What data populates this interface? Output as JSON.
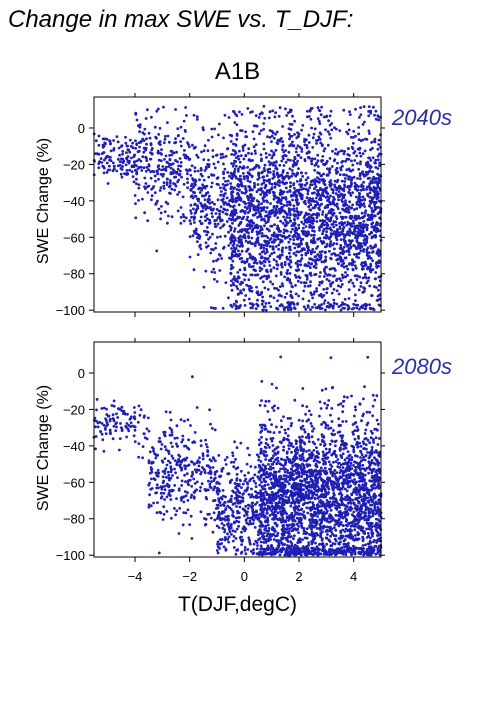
{
  "figure_title": "Change in max SWE vs. T_DJF:",
  "scenario_title": "A1B",
  "xlabel": "T(DJF,degC)",
  "point_color": "#1f1fb4",
  "label_color": "#2a2fa8",
  "chart_data": [
    {
      "type": "scatter",
      "panel_label": "2040s",
      "xlabel": "",
      "ylabel": "SWE Change (%)",
      "xlim": [
        -5.5,
        5.0
      ],
      "ylim": [
        -101,
        17
      ],
      "xticks": [
        -4,
        -2,
        0,
        2,
        4
      ],
      "yticks": [
        0,
        -20,
        -40,
        -60,
        -80,
        -100
      ],
      "grid": false,
      "clusters": [
        {
          "x_range": [
            -5.5,
            -4.0
          ],
          "y_mean": -16,
          "y_sd": 6,
          "n": 120
        },
        {
          "x_range": [
            -4.0,
            -2.0
          ],
          "y_mean": -20,
          "y_sd": 14,
          "n": 260
        },
        {
          "x_range": [
            -2.0,
            -0.5
          ],
          "y_mean": -42,
          "y_sd": 20,
          "n": 300
        },
        {
          "x_range": [
            -0.5,
            5.0
          ],
          "y_mean": -50,
          "y_sd": 28,
          "n": 2600
        }
      ]
    },
    {
      "type": "scatter",
      "panel_label": "2080s",
      "xlabel": "T(DJF,degC)",
      "ylabel": "SWE Change (%)",
      "xlim": [
        -5.5,
        5.0
      ],
      "ylim": [
        -101,
        17
      ],
      "xticks": [
        -4,
        -2,
        0,
        2,
        4
      ],
      "yticks": [
        0,
        -20,
        -40,
        -60,
        -80,
        -100
      ],
      "grid": false,
      "clusters": [
        {
          "x_range": [
            -5.5,
            -3.5
          ],
          "y_mean": -28,
          "y_sd": 6,
          "n": 110
        },
        {
          "x_range": [
            -3.5,
            -1.0
          ],
          "y_mean": -55,
          "y_sd": 14,
          "n": 320
        },
        {
          "x_range": [
            -1.0,
            0.5
          ],
          "y_mean": -75,
          "y_sd": 15,
          "n": 320
        },
        {
          "x_range": [
            0.5,
            5.0
          ],
          "y_mean": -70,
          "y_sd": 22,
          "n": 2600
        }
      ]
    }
  ]
}
